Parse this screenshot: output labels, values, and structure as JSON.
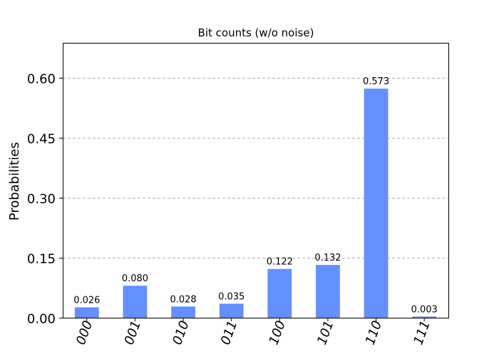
{
  "chart_data": {
    "type": "bar",
    "title": "Bit counts (w/o noise)",
    "xlabel": "",
    "ylabel": "Probabilities",
    "categories": [
      "000",
      "001",
      "010",
      "011",
      "100",
      "101",
      "110",
      "111"
    ],
    "values": [
      0.026,
      0.08,
      0.028,
      0.035,
      0.122,
      0.132,
      0.573,
      0.003
    ],
    "value_labels": [
      "0.026",
      "0.080",
      "0.028",
      "0.035",
      "0.122",
      "0.132",
      "0.573",
      "0.003"
    ],
    "yticks": [
      0.0,
      0.15,
      0.3,
      0.45,
      0.6
    ],
    "ytick_labels": [
      "0.00",
      "0.15",
      "0.30",
      "0.45",
      "0.60"
    ],
    "ylim": [
      0,
      0.6875
    ],
    "grid": true,
    "bar_color": "#648FFF"
  }
}
